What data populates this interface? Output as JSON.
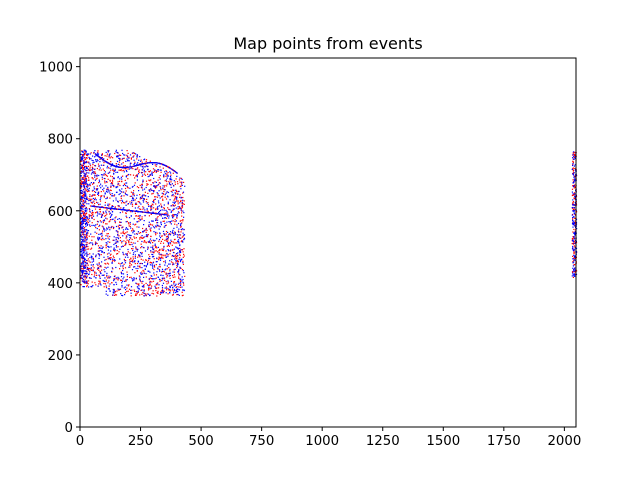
{
  "chart_data": {
    "type": "scatter",
    "title": "Map points from events",
    "xlabel": "",
    "ylabel": "",
    "xlim": [
      0,
      2048
    ],
    "ylim": [
      0,
      1024
    ],
    "x_ticks": [
      0,
      250,
      500,
      750,
      1000,
      1250,
      1500,
      1750,
      2000
    ],
    "y_ticks": [
      0,
      200,
      400,
      600,
      800,
      1000
    ],
    "x_tick_labels": [
      "0",
      "250",
      "500",
      "750",
      "1000",
      "1250",
      "1500",
      "1750",
      "2000"
    ],
    "y_tick_labels": [
      "0",
      "200",
      "400",
      "600",
      "800",
      "1000"
    ],
    "grid": false,
    "legend": "none",
    "colors": {
      "positive": "#ff0000",
      "negative": "#0000ff"
    },
    "series": [
      {
        "polarity": "positive",
        "color": "#ff0000",
        "regions": [
          {
            "x_range": [
              0,
              430
            ],
            "y_range": [
              365,
              770
            ]
          },
          {
            "x_range": [
              2030,
              2048
            ],
            "y_range": [
              415,
              765
            ]
          }
        ]
      },
      {
        "polarity": "negative",
        "color": "#0000ff",
        "regions": [
          {
            "x_range": [
              0,
              430
            ],
            "y_range": [
              365,
              770
            ]
          },
          {
            "x_range": [
              2030,
              2048
            ],
            "y_range": [
              415,
              765
            ]
          }
        ]
      }
    ]
  }
}
